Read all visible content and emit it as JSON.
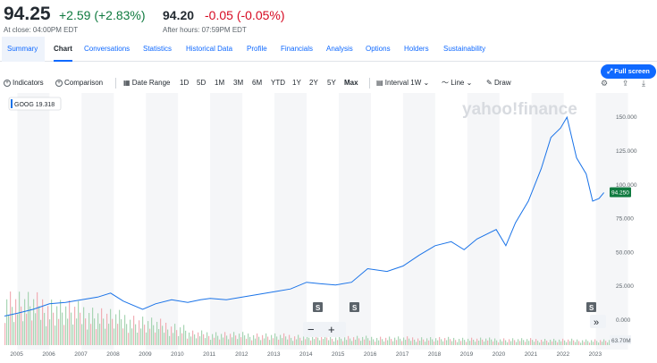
{
  "quote": {
    "price": "94.25",
    "change": "+2.59",
    "change_pct": "(+2.83%)",
    "close_label": "At close: 04:00PM EDT",
    "after_price": "94.20",
    "after_change": "-0.05",
    "after_change_pct": "(-0.05%)",
    "after_label": "After hours: 07:59PM EDT",
    "up_color": "#0f7a3f",
    "down_color": "#d60a22"
  },
  "tabs": [
    "Summary",
    "Chart",
    "Conversations",
    "Statistics",
    "Historical Data",
    "Profile",
    "Financials",
    "Analysis",
    "Options",
    "Holders",
    "Sustainability"
  ],
  "active_tab": "Chart",
  "full_screen_label": "Full screen",
  "toolbar": {
    "indicators": "Indicators",
    "comparison": "Comparison",
    "date_range": "Date Range",
    "ranges": [
      "1D",
      "5D",
      "1M",
      "3M",
      "6M",
      "YTD",
      "1Y",
      "2Y",
      "5Y",
      "Max"
    ],
    "active_range": "Max",
    "interval_label": "Interval",
    "interval_value": "1W",
    "line_label": "Line",
    "draw_label": "Draw"
  },
  "watermark": "yahoo!finance",
  "legend_symbol": "GOOG",
  "legend_value": "19.318",
  "chart_data": {
    "type": "line",
    "series": [
      {
        "name": "GOOG",
        "x": [
          2004.6,
          2005.0,
          2005.5,
          2006.0,
          2006.5,
          2007.0,
          2007.5,
          2007.9,
          2008.3,
          2008.9,
          2009.3,
          2009.8,
          2010.3,
          2010.7,
          2011.0,
          2011.5,
          2012.0,
          2012.5,
          2013.0,
          2013.5,
          2014.0,
          2014.4,
          2014.9,
          2015.4,
          2015.9,
          2016.5,
          2017.0,
          2017.5,
          2018.0,
          2018.5,
          2018.9,
          2019.3,
          2019.9,
          2020.2,
          2020.5,
          2020.9,
          2021.3,
          2021.6,
          2021.9,
          2022.1,
          2022.4,
          2022.7,
          2022.9,
          2023.1,
          2023.25
        ],
        "values": [
          3,
          5,
          8,
          12,
          13,
          15,
          17,
          20,
          14,
          8,
          12,
          15,
          13,
          15,
          16,
          15,
          17,
          19,
          21,
          23,
          28,
          27,
          26,
          28,
          38,
          36,
          40,
          48,
          55,
          58,
          52,
          60,
          67,
          55,
          72,
          88,
          112,
          135,
          142,
          150,
          120,
          108,
          88,
          90,
          94.25
        ]
      }
    ],
    "x_ticks": [
      "2005",
      "2006",
      "2007",
      "2008",
      "2009",
      "2010",
      "2011",
      "2012",
      "2013",
      "2014",
      "2015",
      "2016",
      "2017",
      "2018",
      "2019",
      "2020",
      "2021",
      "2022",
      "2023"
    ],
    "y_ticks": [
      "150.000",
      "125.000",
      "100.000",
      "75.000",
      "50.000",
      "25.000",
      "0.000"
    ],
    "ylim": [
      0,
      160
    ],
    "xlim": [
      2004.6,
      2023.4
    ],
    "current_value_label": "94.250",
    "volume_label": "63.70M",
    "split_markers": [
      "S",
      "S",
      "S"
    ],
    "grid": "alternating year bands",
    "line_color": "#1a73e8"
  },
  "zoom": {
    "minus": "−",
    "plus": "+"
  },
  "nav_arrow": "»"
}
